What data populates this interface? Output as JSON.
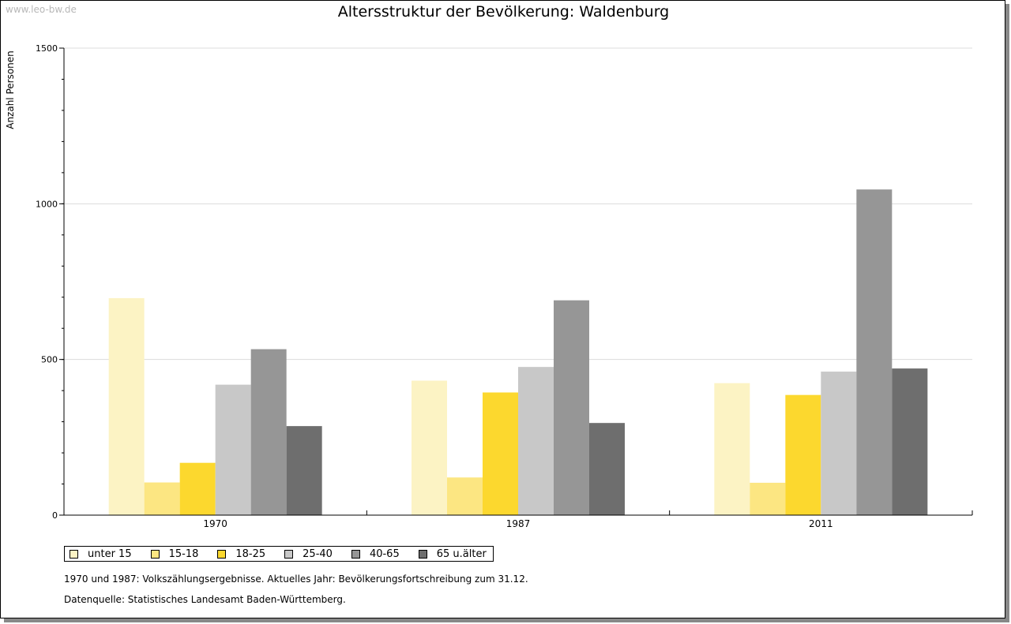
{
  "watermark": "www.leo-bw.de",
  "chart_data": {
    "type": "bar",
    "title": "Altersstruktur der Bevölkerung: Waldenburg",
    "ylabel": "Anzahl Personen",
    "xlabel": "",
    "ylim": [
      0,
      1500
    ],
    "yticks": [
      "0",
      "500",
      "1000",
      "1500"
    ],
    "categories": [
      "1970",
      "1987",
      "2011"
    ],
    "grid": true,
    "legend_position": "bottom-left",
    "series": [
      {
        "name": "unter 15",
        "color": "#fcf3c4",
        "values": [
          697,
          432,
          424
        ]
      },
      {
        "name": "15-18",
        "color": "#fce682",
        "values": [
          105,
          121,
          104
        ]
      },
      {
        "name": "18-25",
        "color": "#fcd82e",
        "values": [
          168,
          394,
          386
        ]
      },
      {
        "name": "25-40",
        "color": "#c8c8c8",
        "values": [
          419,
          476,
          461
        ]
      },
      {
        "name": "40-65",
        "color": "#969696",
        "values": [
          533,
          690,
          1046
        ]
      },
      {
        "name": "65 u.älter",
        "color": "#6e6e6e",
        "values": [
          286,
          296,
          471
        ]
      }
    ]
  },
  "notes": [
    "1970 und 1987: Volkszählungsergebnisse. Aktuelles Jahr: Bevölkerungsfortschreibung zum 31.12.",
    "Datenquelle: Statistisches Landesamt Baden-Württemberg."
  ]
}
